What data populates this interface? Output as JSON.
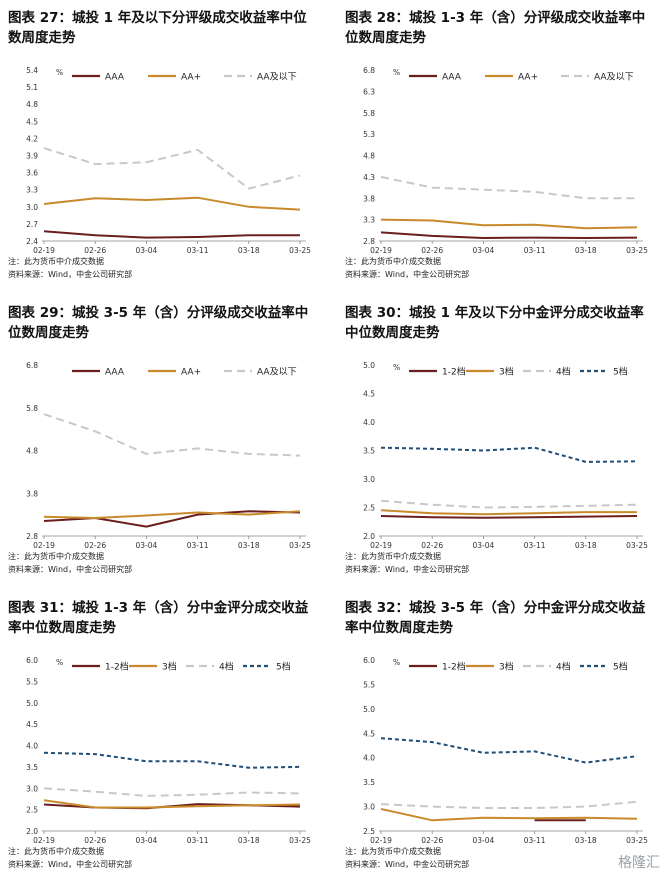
{
  "colors": {
    "AAA": "#6b1e1e",
    "AA+": "#c98a2c",
    "AA及以下": "#c8c8c8",
    "1-2档": "#6b1e1e",
    "3档": "#c98a2c",
    "4档": "#c8c8c8",
    "5档": "#1f4e79"
  },
  "watermark": "格隆汇",
  "panels": [
    {
      "title": "图表 27：城投 1 年及以下分评级成交收益率中位数周度走势",
      "source": "注：此为货币中介成交数据",
      "source2": "资料来源：Wind，中金公司研究部",
      "chart_data": {
        "type": "line",
        "unit": "%",
        "x": [
          "02-19",
          "02-26",
          "03-04",
          "03-11",
          "03-18",
          "03-25"
        ],
        "yticks": [
          2.4,
          2.7,
          3.0,
          3.3,
          3.6,
          3.9,
          4.2,
          4.5,
          4.8,
          5.1,
          5.4
        ],
        "ylim": [
          2.4,
          5.4
        ],
        "series": [
          {
            "name": "AAA",
            "values": [
              2.57,
              2.5,
              2.46,
              2.47,
              2.5,
              2.5
            ]
          },
          {
            "name": "AA+",
            "values": [
              3.05,
              3.15,
              3.12,
              3.16,
              3.0,
              2.95
            ]
          },
          {
            "name": "AA及以下",
            "values": [
              4.03,
              3.75,
              3.78,
              4.0,
              3.32,
              3.55
            ]
          }
        ]
      }
    },
    {
      "title": "图表 28：城投 1-3 年（含）分评级成交收益率中位数周度走势",
      "source": "注：此为货币中介成交数据",
      "source2": "资料来源：Wind，中金公司研究部",
      "chart_data": {
        "type": "line",
        "unit": "%",
        "x": [
          "02-19",
          "02-26",
          "03-04",
          "03-11",
          "03-18",
          "03-25"
        ],
        "yticks": [
          2.8,
          3.3,
          3.8,
          4.3,
          4.8,
          5.3,
          5.8,
          6.3,
          6.8
        ],
        "ylim": [
          2.8,
          6.8
        ],
        "series": [
          {
            "name": "AAA",
            "values": [
              3.0,
              2.92,
              2.87,
              2.88,
              2.87,
              2.88
            ]
          },
          {
            "name": "AA+",
            "values": [
              3.3,
              3.28,
              3.17,
              3.18,
              3.1,
              3.12
            ]
          },
          {
            "name": "AA及以下",
            "values": [
              4.3,
              4.05,
              4.0,
              3.95,
              3.8,
              3.8
            ]
          }
        ]
      }
    },
    {
      "title": "图表 29：城投 3-5 年（含）分评级成交收益率中位数周度走势",
      "source": "注：此为货币中介成交数据",
      "source2": "资料来源：Wind，中金公司研究部",
      "chart_data": {
        "type": "line",
        "unit": "",
        "x": [
          "02-19",
          "02-26",
          "03-04",
          "03-11",
          "03-18",
          "03-25"
        ],
        "yticks": [
          2.8,
          3.8,
          4.8,
          5.8,
          6.8
        ],
        "ylim": [
          2.8,
          6.8
        ],
        "series": [
          {
            "name": "AAA",
            "values": [
              3.15,
              3.22,
              3.02,
              3.3,
              3.38,
              3.35
            ]
          },
          {
            "name": "AA+",
            "values": [
              3.25,
              3.22,
              3.28,
              3.35,
              3.3,
              3.38
            ]
          },
          {
            "name": "AA及以下",
            "values": [
              5.65,
              5.25,
              4.72,
              4.85,
              4.72,
              4.68
            ]
          }
        ]
      }
    },
    {
      "title": "图表 30：城投 1 年及以下分中金评分成交收益率中位数周度走势",
      "source": "注：此为货币中介成交数据",
      "source2": "资料来源：Wind，中金公司研究部",
      "chart_data": {
        "type": "line",
        "unit": "%",
        "x": [
          "02-19",
          "02-26",
          "03-04",
          "03-11",
          "03-18",
          "03-25"
        ],
        "yticks": [
          2.0,
          2.5,
          3.0,
          3.5,
          4.0,
          4.5,
          5.0
        ],
        "ylim": [
          2.0,
          5.0
        ],
        "series": [
          {
            "name": "1-2档",
            "values": [
              2.35,
              2.33,
              2.32,
              2.33,
              2.34,
              2.35
            ]
          },
          {
            "name": "3档",
            "values": [
              2.45,
              2.4,
              2.38,
              2.4,
              2.42,
              2.42
            ]
          },
          {
            "name": "4档",
            "values": [
              2.62,
              2.55,
              2.5,
              2.51,
              2.53,
              2.55
            ]
          },
          {
            "name": "5档",
            "values": [
              3.55,
              3.53,
              3.5,
              3.55,
              3.3,
              3.31
            ]
          }
        ]
      }
    },
    {
      "title": "图表 31：城投 1-3 年（含）分中金评分成交收益率中位数周度走势",
      "source": "注：此为货币中介成交数据",
      "source2": "资料来源：Wind，中金公司研究部",
      "chart_data": {
        "type": "line",
        "unit": "%",
        "x": [
          "02-19",
          "02-26",
          "03-04",
          "03-11",
          "03-18",
          "03-25"
        ],
        "yticks": [
          2.0,
          2.5,
          3.0,
          3.5,
          4.0,
          4.5,
          5.0,
          5.5,
          6.0
        ],
        "ylim": [
          2.0,
          6.0
        ],
        "series": [
          {
            "name": "1-2档",
            "values": [
              2.62,
              2.55,
              2.53,
              2.63,
              2.6,
              2.57
            ]
          },
          {
            "name": "3档",
            "values": [
              2.72,
              2.55,
              2.55,
              2.58,
              2.6,
              2.62
            ]
          },
          {
            "name": "4档",
            "values": [
              3.0,
              2.92,
              2.82,
              2.85,
              2.9,
              2.88
            ]
          },
          {
            "name": "5档",
            "values": [
              3.83,
              3.8,
              3.63,
              3.63,
              3.48,
              3.5
            ]
          }
        ]
      }
    },
    {
      "title": "图表 32：城投 3-5 年（含）分中金评分成交收益率中位数周度走势",
      "source": "注：此为货币中介成交数据",
      "source2": "资料来源：Wind，中金公司研究部",
      "chart_data": {
        "type": "line",
        "unit": "%",
        "x": [
          "02-19",
          "02-26",
          "03-04",
          "03-11",
          "03-18",
          "03-25"
        ],
        "yticks": [
          2.5,
          3.0,
          3.5,
          4.0,
          4.5,
          5.0,
          5.5,
          6.0
        ],
        "ylim": [
          2.5,
          6.0
        ],
        "series": [
          {
            "name": "1-2档",
            "values": [
              null,
              null,
              null,
              2.72,
              2.72,
              null
            ]
          },
          {
            "name": "3档",
            "values": [
              2.95,
              2.72,
              2.77,
              2.76,
              2.77,
              2.75
            ]
          },
          {
            "name": "4档",
            "values": [
              3.05,
              3.0,
              2.97,
              2.97,
              3.0,
              3.1
            ]
          },
          {
            "name": "5档",
            "values": [
              4.4,
              4.32,
              4.1,
              4.13,
              3.9,
              4.03
            ]
          }
        ]
      }
    }
  ]
}
